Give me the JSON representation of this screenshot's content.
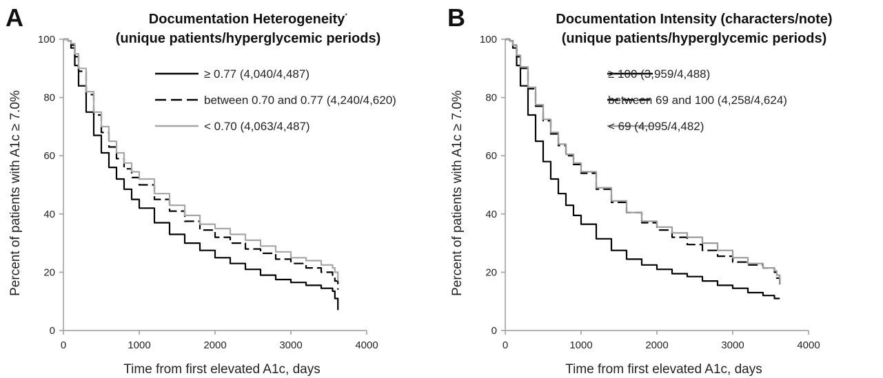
{
  "chart_data": [
    {
      "type": "line",
      "panel_label": "A",
      "title_line1": "Documentation Heterogeneity",
      "title_marker": "*",
      "title_line2": "(unique patients/hyperglycemic periods)",
      "xlabel": "Time from first elevated A1c, days",
      "ylabel": "Percent of patients with A1c ≥ 7.0%",
      "xlim": [
        0,
        4000
      ],
      "ylim": [
        0,
        100
      ],
      "xticks": [
        "0",
        "1000",
        "2000",
        "3000",
        "4000"
      ],
      "yticks": [
        "0",
        "20",
        "40",
        "60",
        "80",
        "100"
      ],
      "grid": false,
      "legend_position": "upper-right",
      "series": [
        {
          "name": "≥ 0.77 (4,040/4,487)",
          "style": "solid",
          "color": "#000000",
          "x": [
            0,
            60,
            100,
            150,
            200,
            300,
            400,
            500,
            600,
            700,
            800,
            900,
            1000,
            1200,
            1400,
            1600,
            1800,
            2000,
            2200,
            2400,
            2600,
            2800,
            3000,
            3200,
            3400,
            3550,
            3580,
            3600,
            3620
          ],
          "y": [
            100,
            99.5,
            97,
            91,
            84,
            75,
            67,
            61,
            56,
            52,
            48.5,
            45,
            42,
            37,
            33,
            30,
            27.5,
            25,
            23,
            21,
            19,
            17.5,
            16.5,
            15.5,
            14.5,
            13.5,
            11,
            11,
            7
          ]
        },
        {
          "name": "between 0.70 and 0.77 (4,240/4,620)",
          "style": "dashed",
          "color": "#000000",
          "x": [
            0,
            60,
            100,
            150,
            200,
            300,
            400,
            500,
            600,
            700,
            800,
            900,
            1000,
            1200,
            1400,
            1600,
            1800,
            2000,
            2200,
            2400,
            2600,
            2800,
            3000,
            3200,
            3400,
            3550,
            3580,
            3600,
            3620
          ],
          "y": [
            100,
            99.5,
            98,
            94,
            89,
            81,
            74,
            68,
            63,
            59,
            55.5,
            52.5,
            50,
            45,
            41,
            37.5,
            34.5,
            32,
            30,
            28,
            26.5,
            24.5,
            23,
            21.5,
            20,
            19,
            17,
            17,
            14
          ]
        },
        {
          "name": "< 0.70 (4,063/4,487)",
          "style": "solid",
          "color": "#a6a6a6",
          "x": [
            0,
            60,
            100,
            150,
            200,
            300,
            400,
            500,
            600,
            700,
            800,
            900,
            1000,
            1200,
            1400,
            1600,
            1800,
            2000,
            2200,
            2400,
            2600,
            2800,
            3000,
            3200,
            3400,
            3550,
            3580,
            3600,
            3620
          ],
          "y": [
            100,
            99.5,
            98.5,
            95,
            90,
            82,
            75,
            70,
            65,
            61,
            57.5,
            54.5,
            52,
            47,
            43,
            39.5,
            36.5,
            35,
            33,
            31,
            29,
            27,
            25,
            24,
            22.5,
            21.5,
            20,
            20,
            17
          ]
        }
      ]
    },
    {
      "type": "line",
      "panel_label": "B",
      "title_line1": "Documentation Intensity (characters/note)",
      "title_marker": "",
      "title_line2": "(unique patients/hyperglycemic periods)",
      "xlabel": "Time from first elevated A1c, days",
      "ylabel": "Percent of patients with A1c ≥ 7.0%",
      "xlim": [
        0,
        4000
      ],
      "ylim": [
        0,
        100
      ],
      "xticks": [
        "0",
        "1000",
        "2000",
        "3000",
        "4000"
      ],
      "yticks": [
        "0",
        "20",
        "40",
        "60",
        "80",
        "100"
      ],
      "grid": false,
      "legend_position": "upper-right",
      "series": [
        {
          "name": "≥ 100 (3,959/4,488)",
          "style": "solid",
          "color": "#000000",
          "x": [
            0,
            60,
            100,
            150,
            200,
            300,
            400,
            500,
            600,
            700,
            800,
            900,
            1000,
            1200,
            1400,
            1600,
            1800,
            2000,
            2200,
            2400,
            2600,
            2800,
            3000,
            3200,
            3400,
            3550,
            3620
          ],
          "y": [
            100,
            99.5,
            97,
            91,
            84,
            74,
            65,
            58,
            52,
            47,
            43,
            39.5,
            36.5,
            31.5,
            27.5,
            24.5,
            22.5,
            21,
            19.5,
            18.5,
            17,
            15.5,
            14.5,
            13,
            12,
            11,
            11
          ]
        },
        {
          "name": "between 69 and 100 (4,258/4,624)",
          "style": "dashed",
          "color": "#000000",
          "x": [
            0,
            60,
            100,
            150,
            200,
            300,
            400,
            500,
            600,
            700,
            800,
            900,
            1000,
            1200,
            1400,
            1600,
            1800,
            2000,
            2200,
            2400,
            2600,
            2800,
            3000,
            3200,
            3400,
            3550,
            3580,
            3600,
            3620
          ],
          "y": [
            100,
            99.5,
            98,
            94,
            90,
            83,
            77,
            72,
            67.5,
            63.5,
            60,
            57,
            54,
            48.5,
            44,
            40.5,
            37,
            34.5,
            32,
            29.5,
            27.5,
            25.5,
            23.5,
            22.5,
            21.5,
            20,
            18,
            18,
            15
          ]
        },
        {
          "name": "< 69 (4,095/4,482)",
          "style": "solid",
          "color": "#9a9a9a",
          "x": [
            0,
            60,
            100,
            150,
            200,
            300,
            400,
            500,
            600,
            700,
            800,
            900,
            1000,
            1200,
            1400,
            1600,
            1800,
            2000,
            2200,
            2400,
            2600,
            2800,
            3000,
            3200,
            3400,
            3550,
            3580,
            3600,
            3620
          ],
          "y": [
            100,
            99.5,
            98,
            94.5,
            90.5,
            83.5,
            77.5,
            72.5,
            68,
            64,
            60.5,
            57.5,
            54.5,
            49,
            44.5,
            40.5,
            37.5,
            35.5,
            33.5,
            32,
            30,
            27.5,
            25,
            23,
            21.5,
            20.5,
            19,
            19,
            16
          ]
        }
      ]
    }
  ]
}
